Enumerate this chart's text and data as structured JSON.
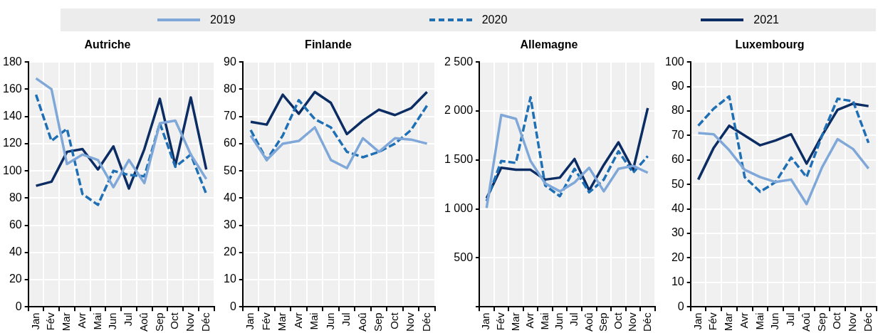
{
  "chart_data": [
    {
      "type": "line",
      "title": "Autriche",
      "categories": [
        "Jan",
        "Fév",
        "Mar",
        "Avr",
        "Mai",
        "Jun",
        "Jul",
        "Aoû",
        "Sep",
        "Oct",
        "Nov",
        "Déc"
      ],
      "ylim": [
        0,
        180
      ],
      "yticks": [
        0,
        20,
        40,
        60,
        80,
        100,
        120,
        140,
        160,
        180
      ],
      "grid": true,
      "legend": "top",
      "marker": "none",
      "series": [
        {
          "name": "2019",
          "color": "#7fa8d9",
          "line_style": "solid",
          "values": [
            168,
            160,
            105,
            112,
            108,
            88,
            108,
            91,
            135,
            137,
            112,
            94
          ]
        },
        {
          "name": "2020",
          "color": "#1f6fb5",
          "line_style": "dashed",
          "values": [
            156,
            122,
            131,
            83,
            75,
            100,
            97,
            96,
            135,
            103,
            112,
            83
          ]
        },
        {
          "name": "2021",
          "color": "#0b2d63",
          "line_style": "solid",
          "values": [
            89,
            92,
            114,
            116,
            101,
            118,
            87,
            116,
            153,
            104,
            154,
            101
          ]
        }
      ]
    },
    {
      "type": "line",
      "title": "Finlande",
      "categories": [
        "Jan",
        "Fév",
        "Mar",
        "Avr",
        "Mai",
        "Jun",
        "Jul",
        "Aoû",
        "Sep",
        "Oct",
        "Nov",
        "Déc"
      ],
      "ylim": [
        0,
        90
      ],
      "yticks": [
        0,
        10,
        20,
        30,
        40,
        50,
        60,
        70,
        80,
        90
      ],
      "grid": true,
      "marker": "none",
      "series": [
        {
          "color": "#7fa8d9",
          "line_style": "solid",
          "values": [
            63,
            54,
            60,
            61,
            66,
            54,
            51,
            62,
            57,
            62,
            61.5,
            60
          ]
        },
        {
          "color": "#1f6fb5",
          "line_style": "dashed",
          "values": [
            65,
            54,
            63,
            76,
            69,
            66,
            57,
            55,
            57,
            60,
            65,
            74
          ]
        },
        {
          "color": "#0b2d63",
          "line_style": "solid",
          "values": [
            68,
            67,
            78,
            71,
            79,
            75,
            63.5,
            68.5,
            72.5,
            70.5,
            73,
            79
          ]
        }
      ]
    },
    {
      "type": "line",
      "title": "Allemagne",
      "categories": [
        "Jan",
        "Fév",
        "Mar",
        "Avr",
        "Mai",
        "Jun",
        "Jul",
        "Aoû",
        "Sep",
        "Oct",
        "Nov",
        "Déc"
      ],
      "ylim": [
        0,
        2500
      ],
      "yticks": [
        {
          "value": 0,
          "label": null
        },
        500,
        {
          "value": 1000,
          "label": "1 000"
        },
        {
          "value": 1500,
          "label": "1 500"
        },
        {
          "value": 2000,
          "label": "2 000"
        },
        {
          "value": 2500,
          "label": "2 500"
        }
      ],
      "grid": true,
      "marker": "none",
      "series": [
        {
          "color": "#7fa8d9",
          "line_style": "solid",
          "values": [
            1010,
            1960,
            1920,
            1490,
            1260,
            1180,
            1270,
            1420,
            1180,
            1410,
            1440,
            1370
          ]
        },
        {
          "color": "#1f6fb5",
          "line_style": "dashed",
          "values": [
            1080,
            1490,
            1470,
            2140,
            1240,
            1130,
            1410,
            1170,
            1300,
            1590,
            1370,
            1540
          ]
        },
        {
          "color": "#0b2d63",
          "line_style": "solid",
          "values": [
            1110,
            1420,
            1400,
            1400,
            1300,
            1320,
            1510,
            1190,
            1450,
            1680,
            1400,
            2030
          ]
        }
      ]
    },
    {
      "type": "line",
      "title": "Luxembourg",
      "categories": [
        "Jan",
        "Fév",
        "Mar",
        "Avr",
        "Mai",
        "Jun",
        "Jul",
        "Aoû",
        "Sep",
        "Oct",
        "Nov",
        "Déc"
      ],
      "ylim": [
        0,
        100
      ],
      "yticks": [
        0,
        10,
        20,
        30,
        40,
        50,
        60,
        70,
        80,
        90,
        100
      ],
      "grid": true,
      "marker": "none",
      "series": [
        {
          "color": "#7fa8d9",
          "line_style": "solid",
          "values": [
            71,
            70.5,
            64,
            56,
            53,
            51,
            52,
            42,
            57,
            68.5,
            64.5,
            56.5
          ]
        },
        {
          "color": "#1f6fb5",
          "line_style": "dashed",
          "values": [
            74,
            81,
            86,
            53,
            47,
            51,
            61,
            53,
            70,
            85,
            84,
            67
          ]
        },
        {
          "color": "#0b2d63",
          "line_style": "solid",
          "values": [
            52,
            65,
            74,
            70,
            66,
            68,
            70.5,
            58.5,
            70,
            80.5,
            83,
            82
          ]
        }
      ]
    }
  ]
}
